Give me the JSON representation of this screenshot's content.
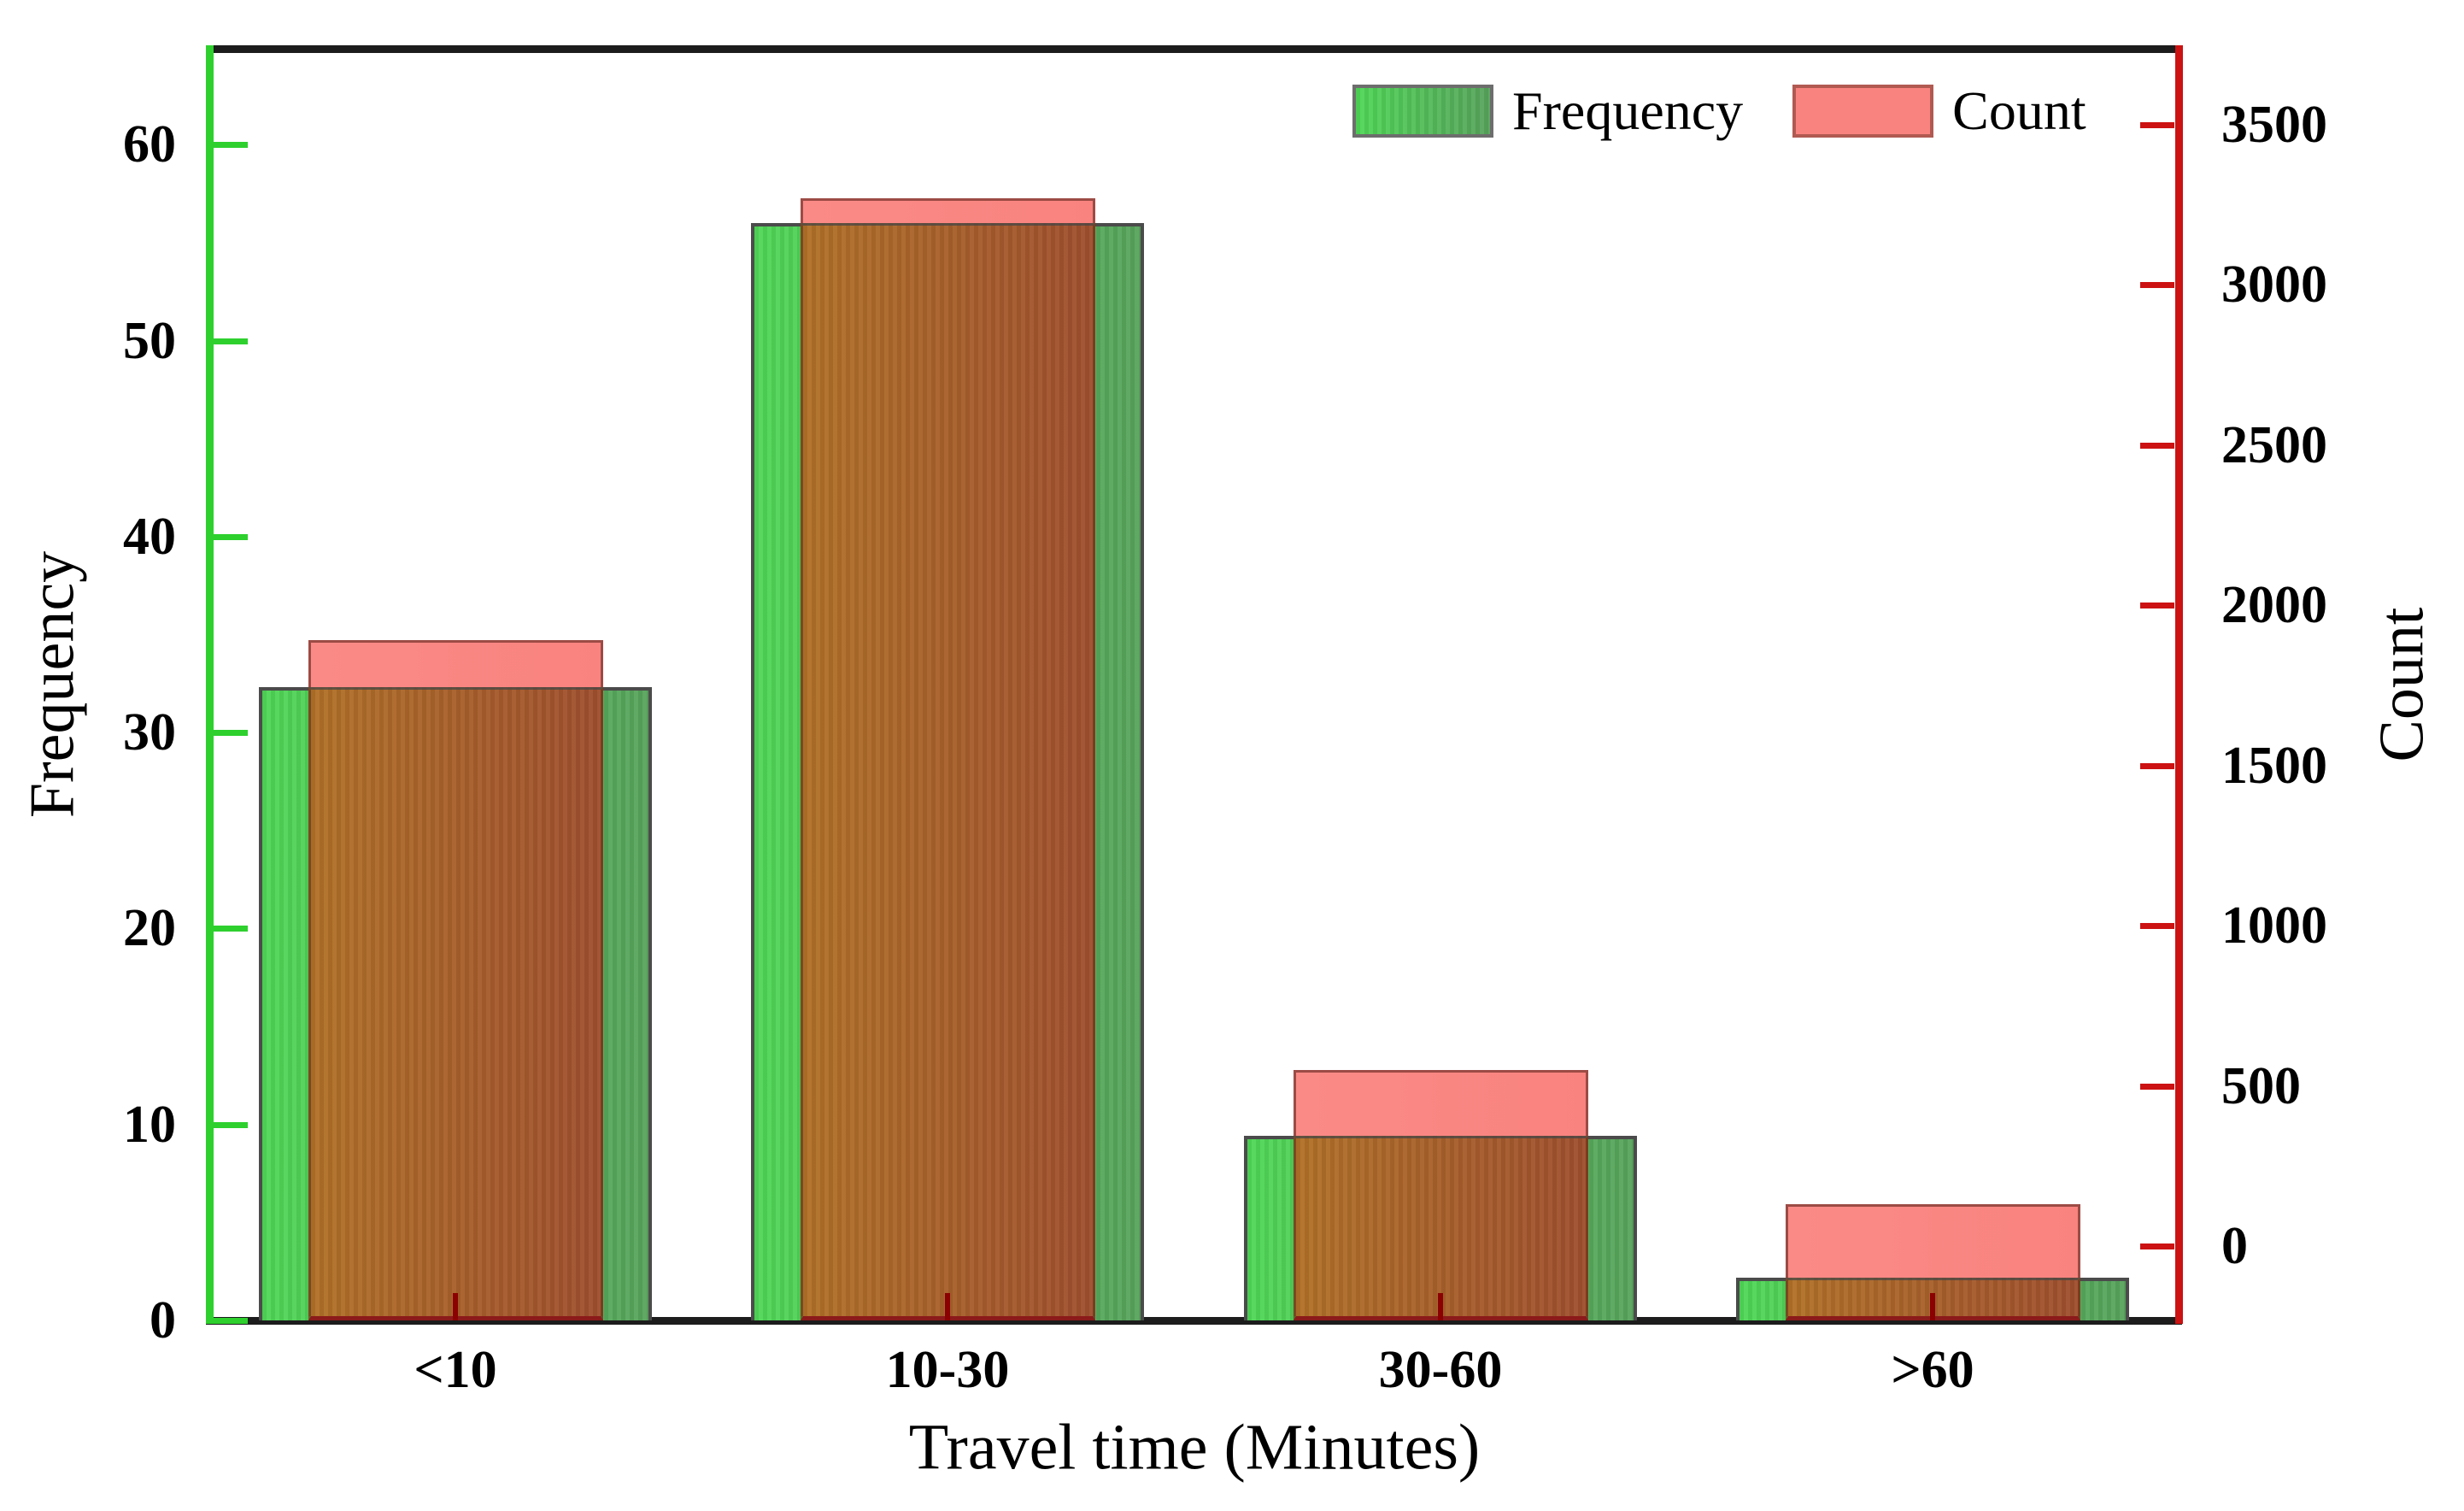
{
  "chart_data": {
    "type": "bar",
    "title": "",
    "xlabel": "Travel time (Minutes)",
    "ylabel_left": "Frequency",
    "ylabel_right": "Count",
    "categories": [
      "<10",
      "10-30",
      "30-60",
      ">60"
    ],
    "series": [
      {
        "name": "Frequency",
        "axis": "left",
        "values": [
          32.3,
          56,
          9.4,
          2.2
        ]
      },
      {
        "name": "Count",
        "axis": "right",
        "values": [
          1890,
          3270,
          550,
          130
        ]
      }
    ],
    "left_axis": {
      "ticks": [
        "0",
        "10",
        "20",
        "30",
        "40",
        "50",
        "60"
      ],
      "tick_values": [
        0,
        10,
        20,
        30,
        40,
        50,
        60
      ],
      "range": [
        0,
        64.9
      ]
    },
    "right_axis": {
      "ticks": [
        "0",
        "500",
        "1000",
        "1500",
        "2000",
        "2500",
        "3000",
        "3500"
      ],
      "tick_values": [
        0,
        500,
        1000,
        1500,
        2000,
        2500,
        3000,
        3500
      ],
      "range": [
        -232,
        3736
      ]
    },
    "legend": {
      "position": "top-right",
      "entries": [
        "Frequency",
        "Count"
      ]
    },
    "grid": false,
    "colors": {
      "left_axis": "#2ed02e",
      "right_axis": "#cc1212",
      "frame": "#1c1c1c",
      "green_bar_start": "#4fd756",
      "green_bar_end": "#57a35c",
      "green_bar_border": "#4b4b4b",
      "salmon_fill": "#f9837f",
      "salmon_border": "#9c4b45",
      "overlap_start": "#b17128",
      "overlap_end": "#9f4f2e",
      "overlap_baseline": "#8b1a1a",
      "x_tick_red": "#8b0000",
      "tick_label": "#000000"
    }
  }
}
